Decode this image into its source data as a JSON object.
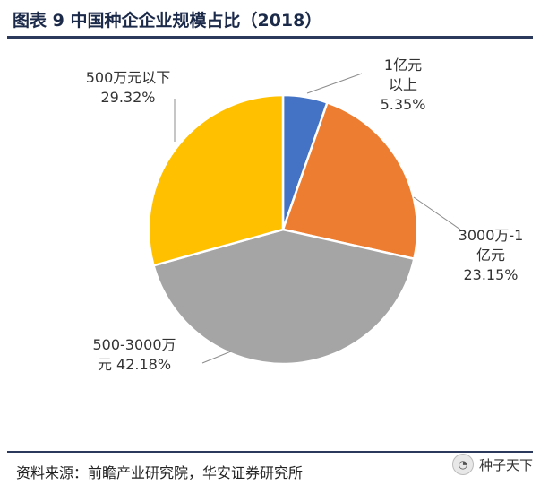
{
  "figure": {
    "title": "图表 9 中国种企企业规模占比（2018）",
    "source": "资料来源：前瞻产业研究院，华安证券研究所",
    "watermark": "种子天下",
    "watermark_icon": "chat-bubble-icon"
  },
  "chart_data": {
    "type": "pie",
    "title": "图表 9 中国种企企业规模占比（2018）",
    "slices": [
      {
        "label_lines": [
          "1亿元",
          "以上"
        ],
        "value_label": "5.35%",
        "value": 5.35,
        "color": "#4472c4"
      },
      {
        "label_lines": [
          "3000万-1",
          "亿元"
        ],
        "value_label": "23.15%",
        "value": 23.15,
        "color": "#ed7d31"
      },
      {
        "label_lines": [
          "500-3000万",
          "元 42.18%"
        ],
        "value_label": "",
        "value": 42.18,
        "color": "#a5a5a5"
      },
      {
        "label_lines": [
          "500万元以下"
        ],
        "value_label": "29.32%",
        "value": 29.32,
        "color": "#ffc000"
      }
    ],
    "start_angle_deg": 0,
    "direction": "clockwise",
    "legend": "none"
  }
}
